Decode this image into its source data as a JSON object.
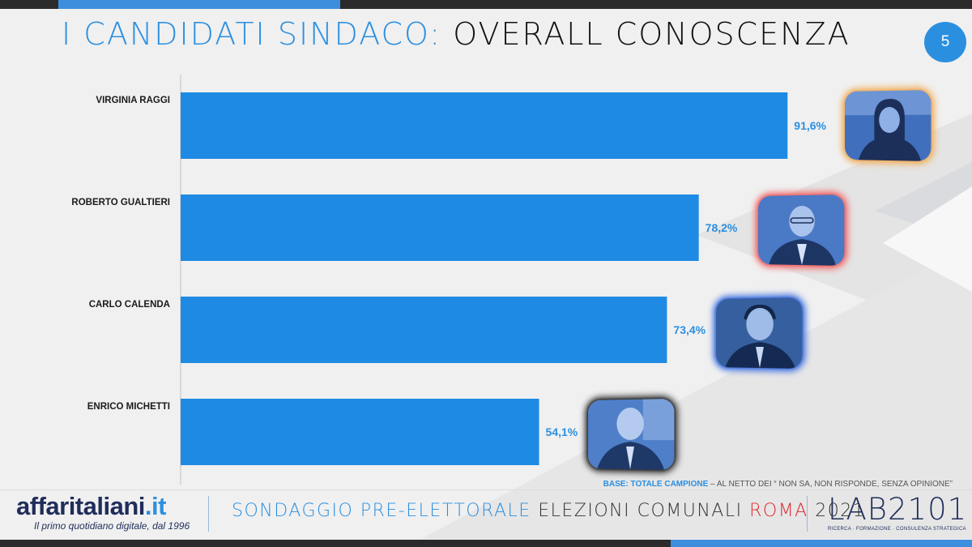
{
  "header": {
    "title_part1": "I CANDIDATI SINDACO:",
    "title_part2": "OVERALL CONOSCENZA",
    "page_number": "5"
  },
  "chart_data": {
    "type": "bar",
    "orientation": "horizontal",
    "categories": [
      "VIRGINIA RAGGI",
      "ROBERTO GUALTIERI",
      "CARLO CALENDA",
      "ENRICO MICHETTI"
    ],
    "values": [
      91.6,
      78.2,
      73.4,
      54.1
    ],
    "value_labels": [
      "91,6%",
      "78,2%",
      "73,4%",
      "54,1%"
    ],
    "xlim": [
      0,
      100
    ],
    "bar_color": "#1f8ae3",
    "value_label_color": "#2b8fe0",
    "grid": false,
    "legend": "none"
  },
  "photos": [
    {
      "icon": "portrait-virginia-raggi-icon",
      "glow": "#f0b060"
    },
    {
      "icon": "portrait-roberto-gualtieri-icon",
      "glow": "#f06a6a"
    },
    {
      "icon": "portrait-carlo-calenda-icon",
      "glow": "#4a78e0"
    },
    {
      "icon": "portrait-enrico-michetti-icon",
      "glow": "#333333"
    }
  ],
  "note": {
    "base_label": "BASE: TOTALE CAMPIONE",
    "base_detail": " – AL NETTO DEI “ NON SA, NON RISPONDE, SENZA OPINIONE”"
  },
  "footer": {
    "brand_name": "affaritaliani",
    "brand_tld": ".it",
    "brand_tagline": "Il primo quotidiano digitale, dal 1996",
    "survey_part1": "SONDAGGIO PRE-ELETTORALE",
    "survey_part2": " ELEZIONI COMUNALI ",
    "survey_part3": "ROMA",
    "survey_part4": " 2021",
    "lab_name": "LAB2101",
    "lab_tagline": "RICERCA · FORMAZIONE · CONSULENZA STRATEGICA"
  }
}
